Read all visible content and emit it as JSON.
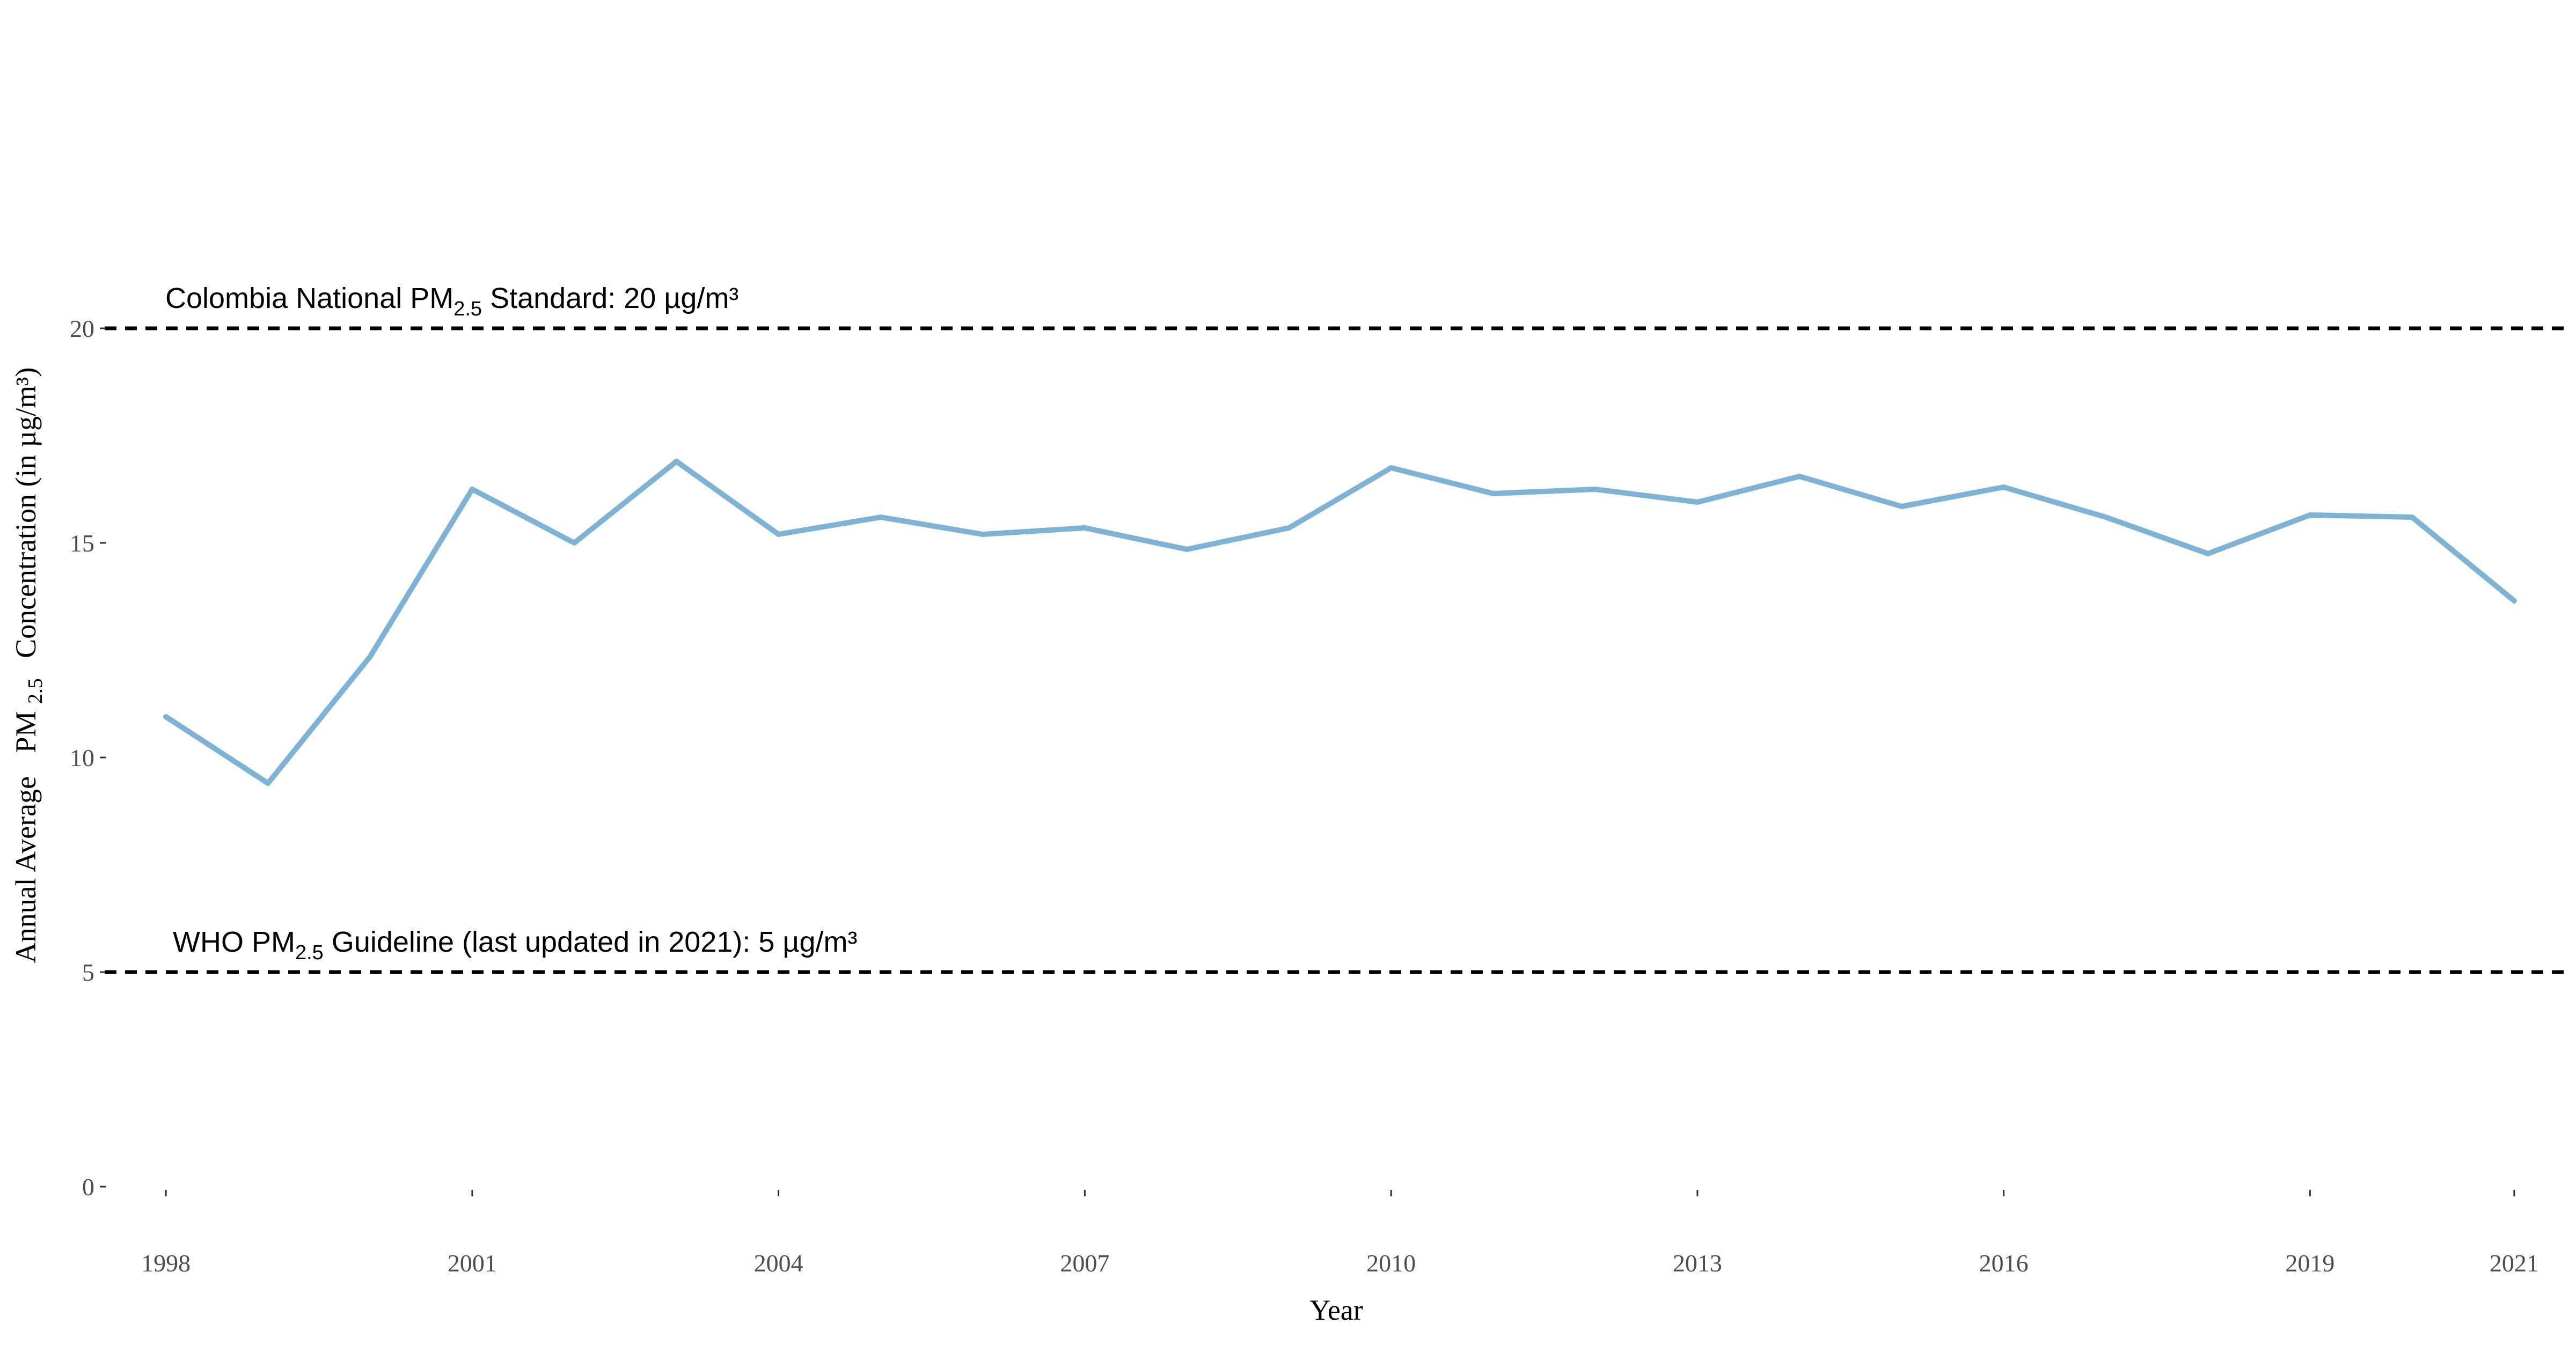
{
  "chart_data": {
    "type": "line",
    "xlabel": "Year",
    "ylabel_prefix": "Annual Average",
    "ylabel_pm": "PM",
    "ylabel_sub": "2.5",
    "ylabel_suffix": "Concentration (in µg/m³)",
    "ylim": [
      0,
      20
    ],
    "xlim": [
      1997.4,
      2021.5
    ],
    "yticks": [
      "0",
      "5",
      "10",
      "15",
      "20"
    ],
    "xticks": [
      "1998",
      "2001",
      "2004",
      "2007",
      "2010",
      "2013",
      "2016",
      "2019",
      "2021"
    ],
    "grid": false,
    "line_color": "#7fb3d5",
    "x": [
      1998,
      1999,
      2000,
      2001,
      2002,
      2003,
      2004,
      2005,
      2006,
      2007,
      2008,
      2009,
      2010,
      2011,
      2012,
      2013,
      2014,
      2015,
      2016,
      2017,
      2018,
      2019,
      2020,
      2021
    ],
    "values": [
      10.95,
      9.4,
      12.35,
      16.25,
      15.0,
      16.9,
      15.2,
      15.6,
      15.2,
      15.35,
      14.85,
      15.35,
      16.75,
      16.15,
      16.25,
      15.95,
      16.55,
      15.85,
      16.3,
      15.6,
      14.75,
      15.65,
      15.6,
      13.65
    ],
    "reference_lines": [
      {
        "value": 20,
        "label_before": "Colombia National PM",
        "label_sub": "2.5",
        "label_after": " Standard: 20 µg/m³"
      },
      {
        "value": 5,
        "label_before": "WHO  PM",
        "label_sub": "2.5",
        "label_after": "  Guideline (last updated in 2021): 5 µg/m³"
      }
    ]
  }
}
